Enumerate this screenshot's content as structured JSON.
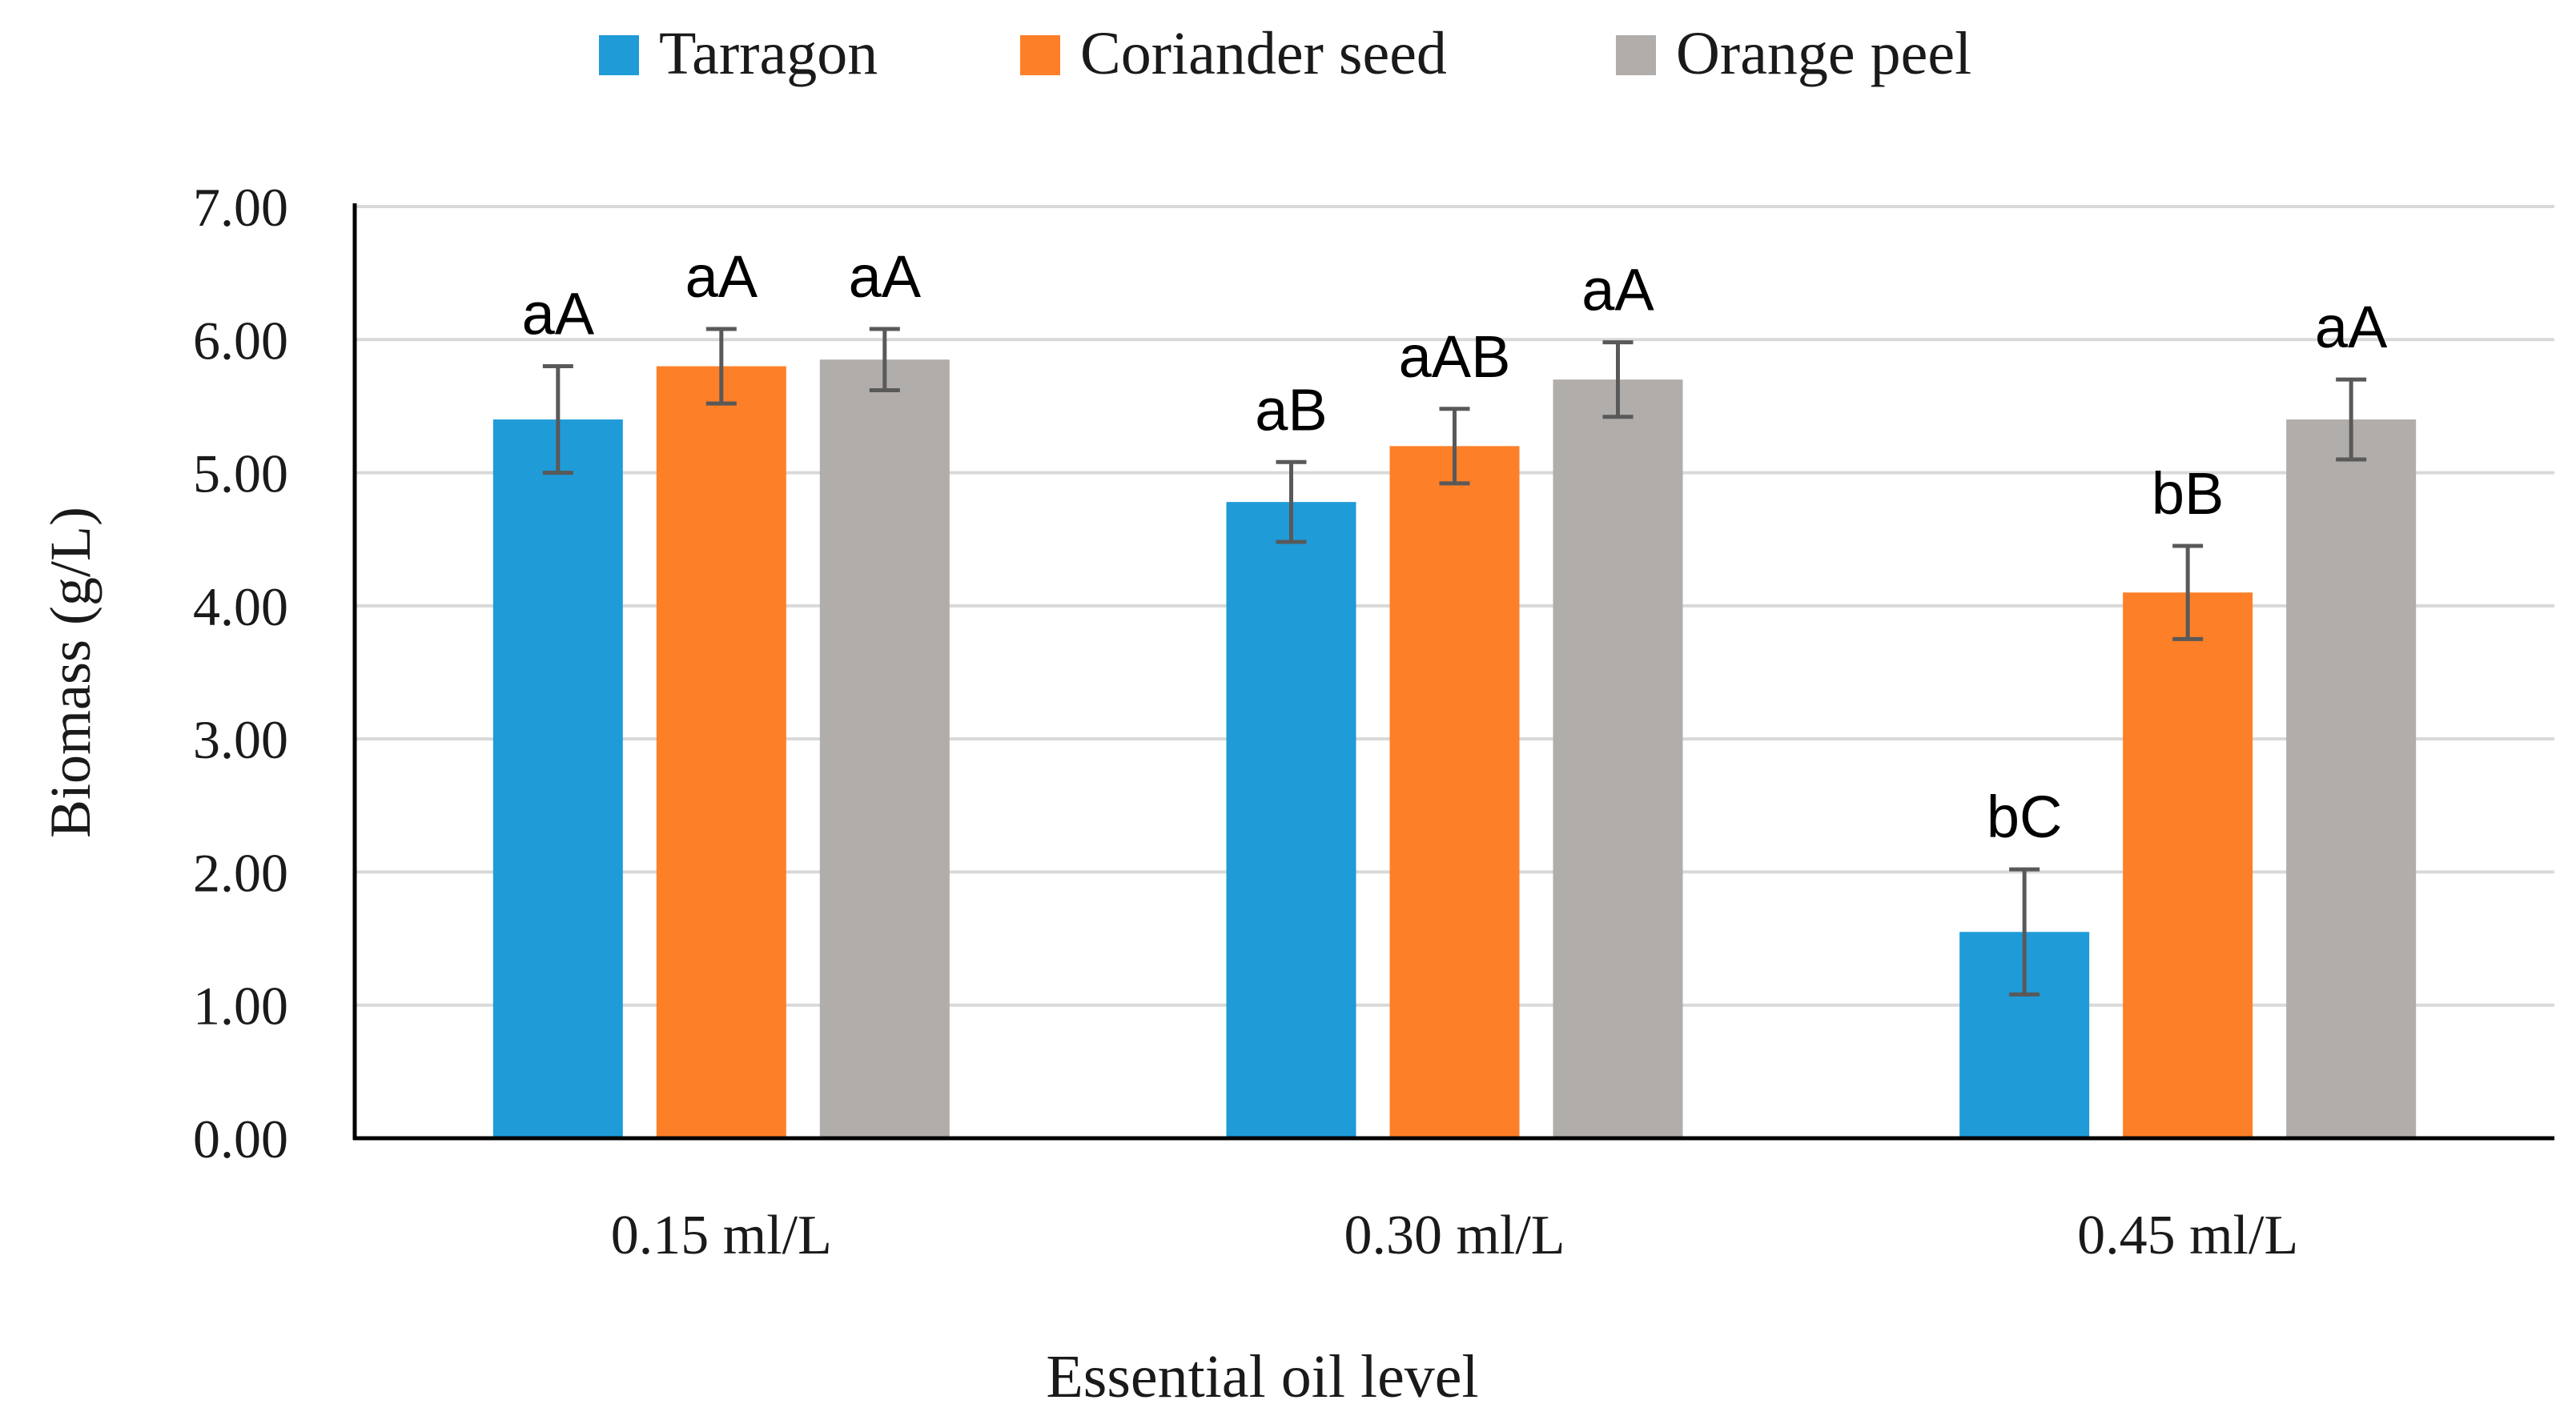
{
  "chart_data": {
    "type": "bar",
    "title": "",
    "xlabel": "Essential oil level",
    "ylabel": "Biomass (g/L)",
    "ylim": [
      0,
      7
    ],
    "yticks": [
      "0.00",
      "1.00",
      "2.00",
      "3.00",
      "4.00",
      "5.00",
      "6.00",
      "7.00"
    ],
    "grid": true,
    "legend_position": "top",
    "categories": [
      "0.15 ml/L",
      "0.30 ml/L",
      "0.45 ml/L"
    ],
    "series": [
      {
        "name": "Tarragon",
        "color": "#1f9bd7",
        "values": [
          5.4,
          4.78,
          1.55
        ],
        "errors": [
          0.4,
          0.3,
          0.47
        ],
        "labels": [
          "aA",
          "aB",
          "bC"
        ]
      },
      {
        "name": "Coriander seed",
        "color": "#fd7f28",
        "values": [
          5.8,
          5.2,
          4.1
        ],
        "errors": [
          0.28,
          0.28,
          0.35
        ],
        "labels": [
          "aA",
          "aAB",
          "bB"
        ]
      },
      {
        "name": "Orange peel",
        "color": "#b0adab",
        "values": [
          5.85,
          5.7,
          5.4
        ],
        "errors": [
          0.23,
          0.28,
          0.3
        ],
        "labels": [
          "aA",
          "aA",
          "aA"
        ]
      }
    ]
  }
}
